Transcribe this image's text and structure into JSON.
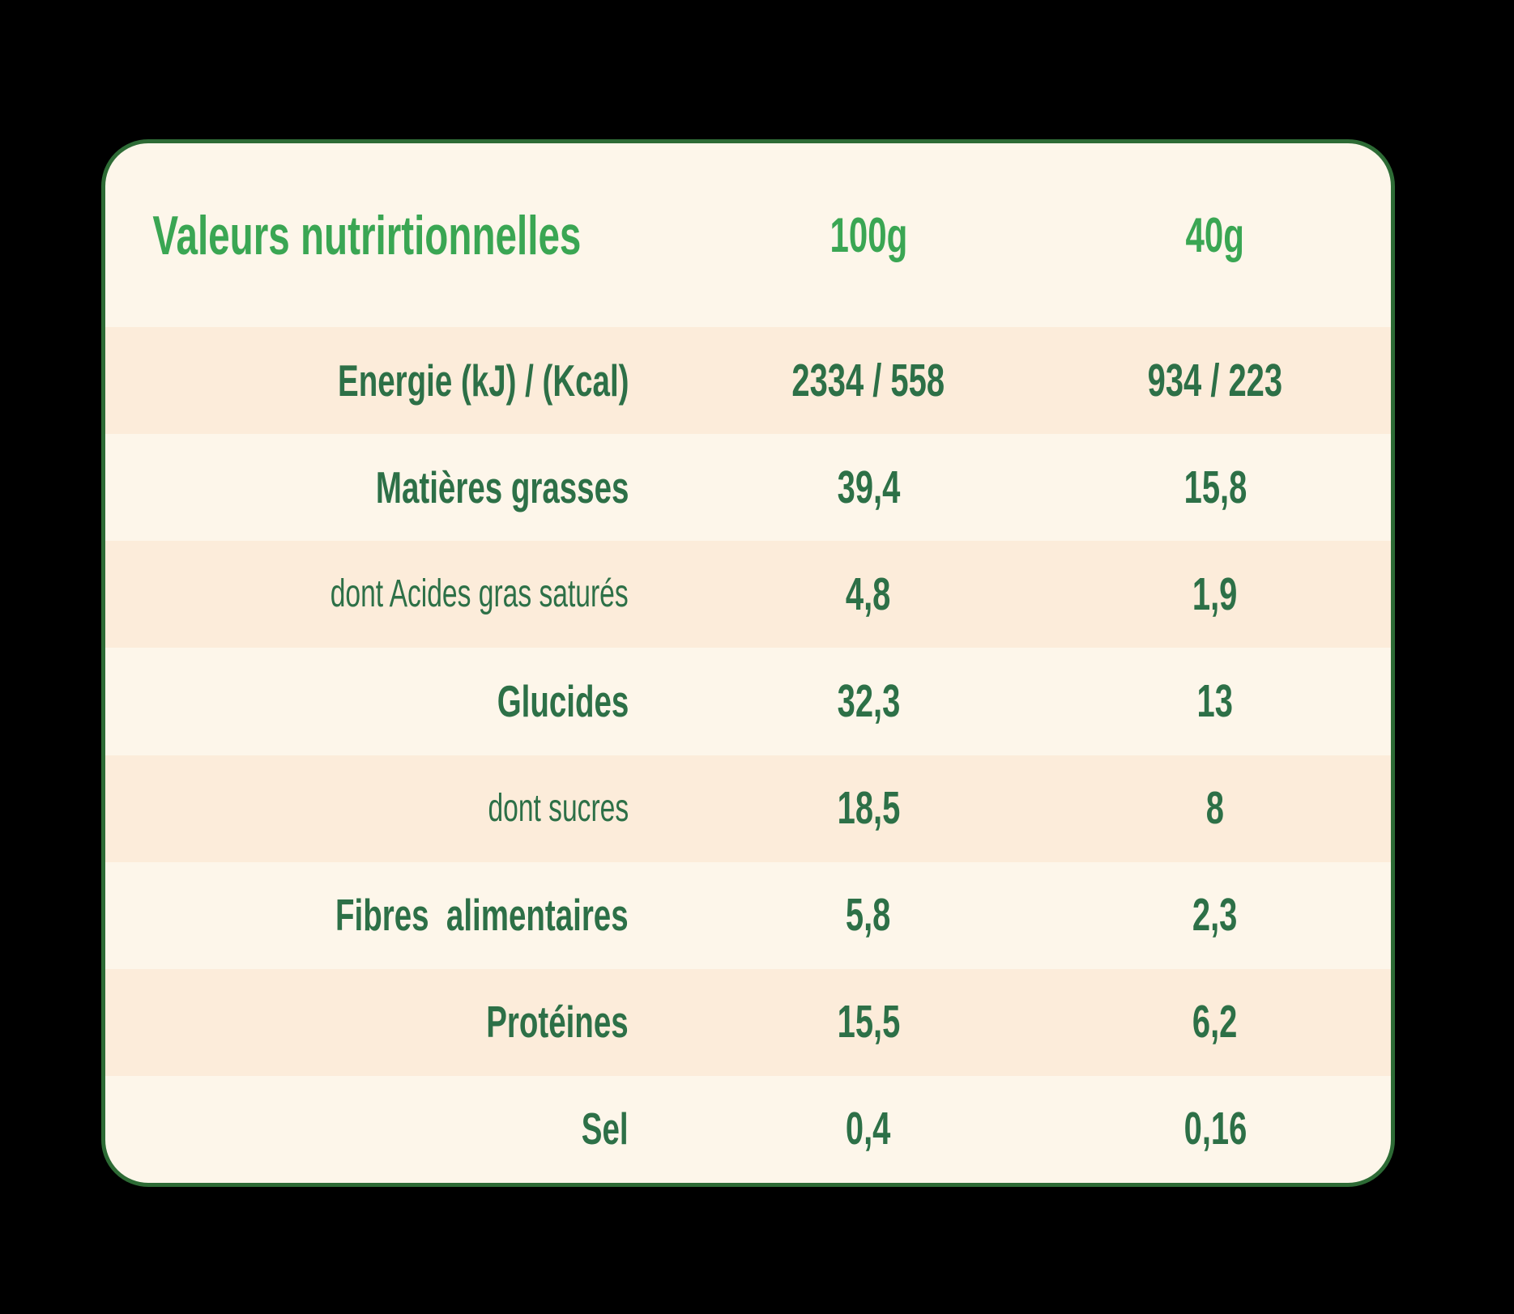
{
  "theme": {
    "page_bg": "#000000",
    "card_bg": "#fdf6ea",
    "stripe_bg": "#fcecda",
    "border_green": "#2d6b35",
    "title_green": "#3aa653",
    "text_green": "#2d7047"
  },
  "table": {
    "header": {
      "title": "Valeurs nutrirtionnelles",
      "col1": "100g",
      "col2": "40g"
    },
    "rows": [
      {
        "label": "Energie (kJ) / (Kcal)",
        "v100": "2334 / 558",
        "v40": "934 / 223",
        "bold": true,
        "shaded": true
      },
      {
        "label": "Matières grasses",
        "v100": "39,4",
        "v40": "15,8",
        "bold": true,
        "shaded": false
      },
      {
        "label": "dont Acides gras saturés",
        "v100": "4,8",
        "v40": "1,9",
        "bold": false,
        "shaded": true
      },
      {
        "label": "Glucides",
        "v100": "32,3",
        "v40": "13",
        "bold": true,
        "shaded": false
      },
      {
        "label": "dont sucres",
        "v100": "18,5",
        "v40": "8",
        "bold": false,
        "shaded": true
      },
      {
        "label": "Fibres  alimentaires",
        "v100": "5,8",
        "v40": "2,3",
        "bold": true,
        "shaded": false
      },
      {
        "label": "Protéines",
        "v100": "15,5",
        "v40": "6,2",
        "bold": true,
        "shaded": true
      },
      {
        "label": "Sel",
        "v100": "0,4",
        "v40": "0,16",
        "bold": true,
        "shaded": false
      }
    ]
  }
}
